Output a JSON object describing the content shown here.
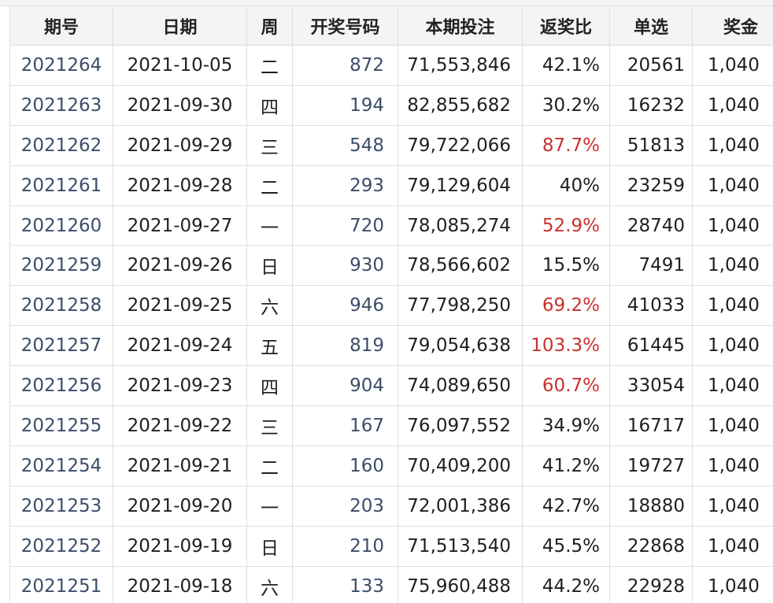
{
  "headers": {
    "issue": "期号",
    "date": "日期",
    "week": "周",
    "number": "开奖号码",
    "bet": "本期投注",
    "ratio": "返奖比",
    "single": "单选",
    "prize": "奖金"
  },
  "colors": {
    "link": "#3b4d6a",
    "highlight_red": "#c7312d",
    "header_bg": "#f4f4f4",
    "border": "#dedede"
  },
  "rows": [
    {
      "issue": "2021264",
      "date": "2021-10-05",
      "week": "二",
      "number": "872",
      "bet": "71,553,846",
      "ratio": "42.1%",
      "single": "20561",
      "prize": "1,040"
    },
    {
      "issue": "2021263",
      "date": "2021-09-30",
      "week": "四",
      "number": "194",
      "bet": "82,855,682",
      "ratio": "30.2%",
      "single": "16232",
      "prize": "1,040"
    },
    {
      "issue": "2021262",
      "date": "2021-09-29",
      "week": "三",
      "number": "548",
      "bet": "79,722,066",
      "ratio": "87.7%",
      "single": "51813",
      "prize": "1,040"
    },
    {
      "issue": "2021261",
      "date": "2021-09-28",
      "week": "二",
      "number": "293",
      "bet": "79,129,604",
      "ratio": "40%",
      "single": "23259",
      "prize": "1,040"
    },
    {
      "issue": "2021260",
      "date": "2021-09-27",
      "week": "一",
      "number": "720",
      "bet": "78,085,274",
      "ratio": "52.9%",
      "single": "28740",
      "prize": "1,040"
    },
    {
      "issue": "2021259",
      "date": "2021-09-26",
      "week": "日",
      "number": "930",
      "bet": "78,566,602",
      "ratio": "15.5%",
      "single": "7491",
      "prize": "1,040"
    },
    {
      "issue": "2021258",
      "date": "2021-09-25",
      "week": "六",
      "number": "946",
      "bet": "77,798,250",
      "ratio": "69.2%",
      "single": "41033",
      "prize": "1,040"
    },
    {
      "issue": "2021257",
      "date": "2021-09-24",
      "week": "五",
      "number": "819",
      "bet": "79,054,638",
      "ratio": "103.3%",
      "single": "61445",
      "prize": "1,040"
    },
    {
      "issue": "2021256",
      "date": "2021-09-23",
      "week": "四",
      "number": "904",
      "bet": "74,089,650",
      "ratio": "60.7%",
      "single": "33054",
      "prize": "1,040"
    },
    {
      "issue": "2021255",
      "date": "2021-09-22",
      "week": "三",
      "number": "167",
      "bet": "76,097,552",
      "ratio": "34.9%",
      "single": "16717",
      "prize": "1,040"
    },
    {
      "issue": "2021254",
      "date": "2021-09-21",
      "week": "二",
      "number": "160",
      "bet": "70,409,200",
      "ratio": "41.2%",
      "single": "19727",
      "prize": "1,040"
    },
    {
      "issue": "2021253",
      "date": "2021-09-20",
      "week": "一",
      "number": "203",
      "bet": "72,001,386",
      "ratio": "42.7%",
      "single": "18880",
      "prize": "1,040"
    },
    {
      "issue": "2021252",
      "date": "2021-09-19",
      "week": "日",
      "number": "210",
      "bet": "71,513,540",
      "ratio": "45.5%",
      "single": "22868",
      "prize": "1,040"
    },
    {
      "issue": "2021251",
      "date": "2021-09-18",
      "week": "六",
      "number": "133",
      "bet": "75,960,488",
      "ratio": "44.2%",
      "single": "22928",
      "prize": "1,040"
    }
  ]
}
